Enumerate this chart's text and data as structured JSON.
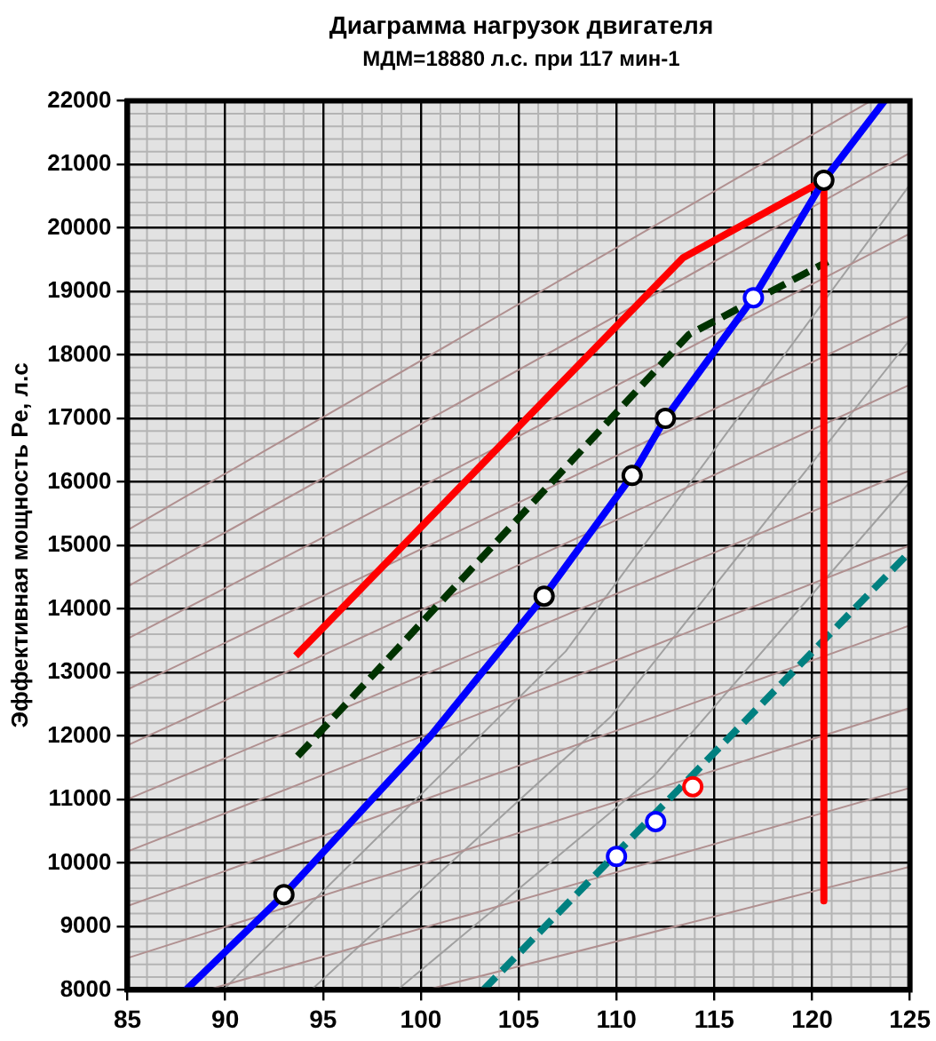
{
  "chart_data": {
    "type": "line",
    "title": "Диаграмма нагрузок двигателя",
    "subtitle": "МДМ=18880 л.с. при 117 мин-1",
    "ylabel": "Эффективная мощность Pe, л.с",
    "xlim": [
      85,
      125
    ],
    "xticks": [
      85,
      90,
      95,
      100,
      105,
      110,
      115,
      120,
      125
    ],
    "ylim": [
      8000,
      22000
    ],
    "yticks": [
      8000,
      9000,
      10000,
      11000,
      12000,
      13000,
      14000,
      15000,
      16000,
      17000,
      18000,
      19000,
      20000,
      21000,
      22000
    ],
    "grid": true,
    "legend": false,
    "marker": "none",
    "line_style": "solid",
    "series": [
      {
        "color": "#0000ff",
        "x": [
          88,
          93,
          100.5,
          106.3,
          110.8,
          112.5,
          117,
          120.6,
          123.7
        ],
        "values": [
          8000,
          9500,
          12000,
          14200,
          16100,
          17000,
          18900,
          20750,
          22000
        ]
      },
      {
        "color": "#ff0000",
        "x": [
          93.6,
          113.4,
          120.6,
          120.6
        ],
        "values": [
          13260,
          19530,
          20750,
          9400
        ]
      },
      {
        "color": "#003300",
        "line_style": "dashed",
        "x": [
          93.7,
          113.7,
          120.8
        ],
        "values": [
          11680,
          18320,
          19470
        ]
      },
      {
        "color": "#008080",
        "line_style": "dashed",
        "x": [
          103.2,
          125
        ],
        "values": [
          8000,
          14900
        ]
      },
      {
        "color": "#b09090",
        "x": [
          85,
          123
        ],
        "values": [
          15240,
          22000
        ]
      },
      {
        "color": "#b09090",
        "x": [
          85,
          125
        ],
        "values": [
          14350,
          21180
        ]
      },
      {
        "color": "#b09090",
        "x": [
          85,
          125
        ],
        "values": [
          13530,
          19910
        ]
      },
      {
        "color": "#b09090",
        "x": [
          85,
          125
        ],
        "values": [
          12730,
          18620
        ]
      },
      {
        "color": "#b09090",
        "x": [
          85,
          125
        ],
        "values": [
          11850,
          17530
        ]
      },
      {
        "color": "#b09090",
        "x": [
          85,
          125
        ],
        "values": [
          11000,
          16180
        ]
      },
      {
        "color": "#b09090",
        "x": [
          85,
          125
        ],
        "values": [
          10180,
          15000
        ]
      },
      {
        "color": "#b09090",
        "x": [
          85,
          125
        ],
        "values": [
          9320,
          13740
        ]
      },
      {
        "color": "#b09090",
        "x": [
          85,
          125
        ],
        "values": [
          8500,
          12440
        ]
      },
      {
        "color": "#b09090",
        "x": [
          89.1,
          125
        ],
        "values": [
          8000,
          11180
        ]
      },
      {
        "color": "#b09090",
        "x": [
          100.3,
          125
        ],
        "values": [
          8000,
          9940
        ]
      },
      {
        "color": "#a0a0a0",
        "x": [
          89.9,
          107.4,
          125
        ],
        "values": [
          8000,
          13330,
          20680
        ]
      },
      {
        "color": "#a0a0a0",
        "x": [
          94.4,
          109.7,
          125
        ],
        "values": [
          8000,
          12300,
          18240
        ]
      },
      {
        "color": "#a0a0a0",
        "x": [
          98.8,
          111.9,
          125
        ],
        "values": [
          8000,
          11360,
          16000
        ]
      },
      {
        "type": "scatter",
        "marker": "circle",
        "color": "#000000",
        "x": [
          93,
          106.3,
          110.8,
          112.5,
          120.6
        ],
        "values": [
          9500,
          14200,
          16100,
          17000,
          20750
        ]
      },
      {
        "type": "scatter",
        "marker": "circle",
        "color": "#0000ff",
        "x": [
          117,
          110,
          112
        ],
        "values": [
          18900,
          10100,
          10650
        ]
      },
      {
        "type": "scatter",
        "marker": "circle",
        "color": "#ff0000",
        "x": [
          113.9
        ],
        "values": [
          11200
        ]
      }
    ]
  }
}
